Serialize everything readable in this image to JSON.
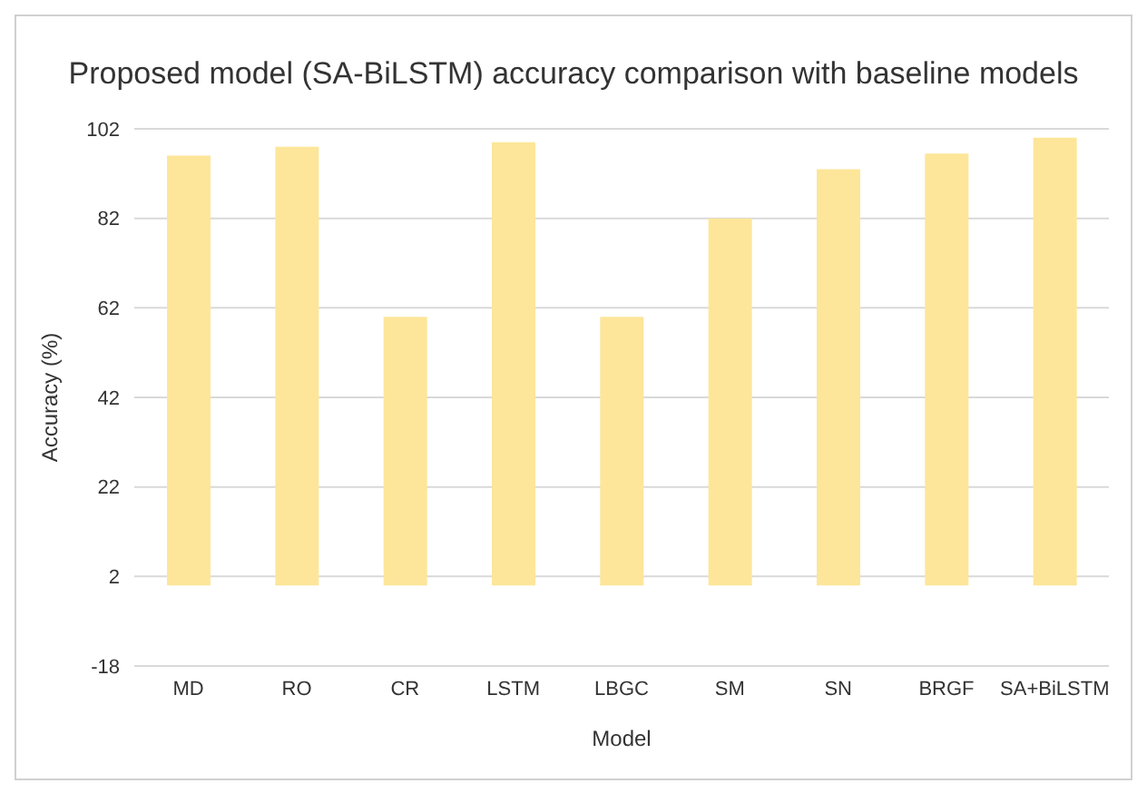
{
  "chart_data": {
    "type": "bar",
    "title": "Proposed model (SA-BiLSTM) accuracy comparison with baseline models",
    "xlabel": "Model",
    "ylabel": "Accuracy (%)",
    "categories": [
      "MD",
      "RO",
      "CR",
      "LSTM",
      "LBGC",
      "SM",
      "SN",
      "BRGF",
      "SA+BiLSTM"
    ],
    "values": [
      96,
      98,
      60,
      99,
      60,
      82,
      93,
      96.5,
      100
    ],
    "color": "#fde699",
    "ylim": [
      -18,
      102
    ],
    "yticks": [
      -18,
      2,
      22,
      42,
      62,
      82,
      102
    ],
    "grid": "y"
  }
}
